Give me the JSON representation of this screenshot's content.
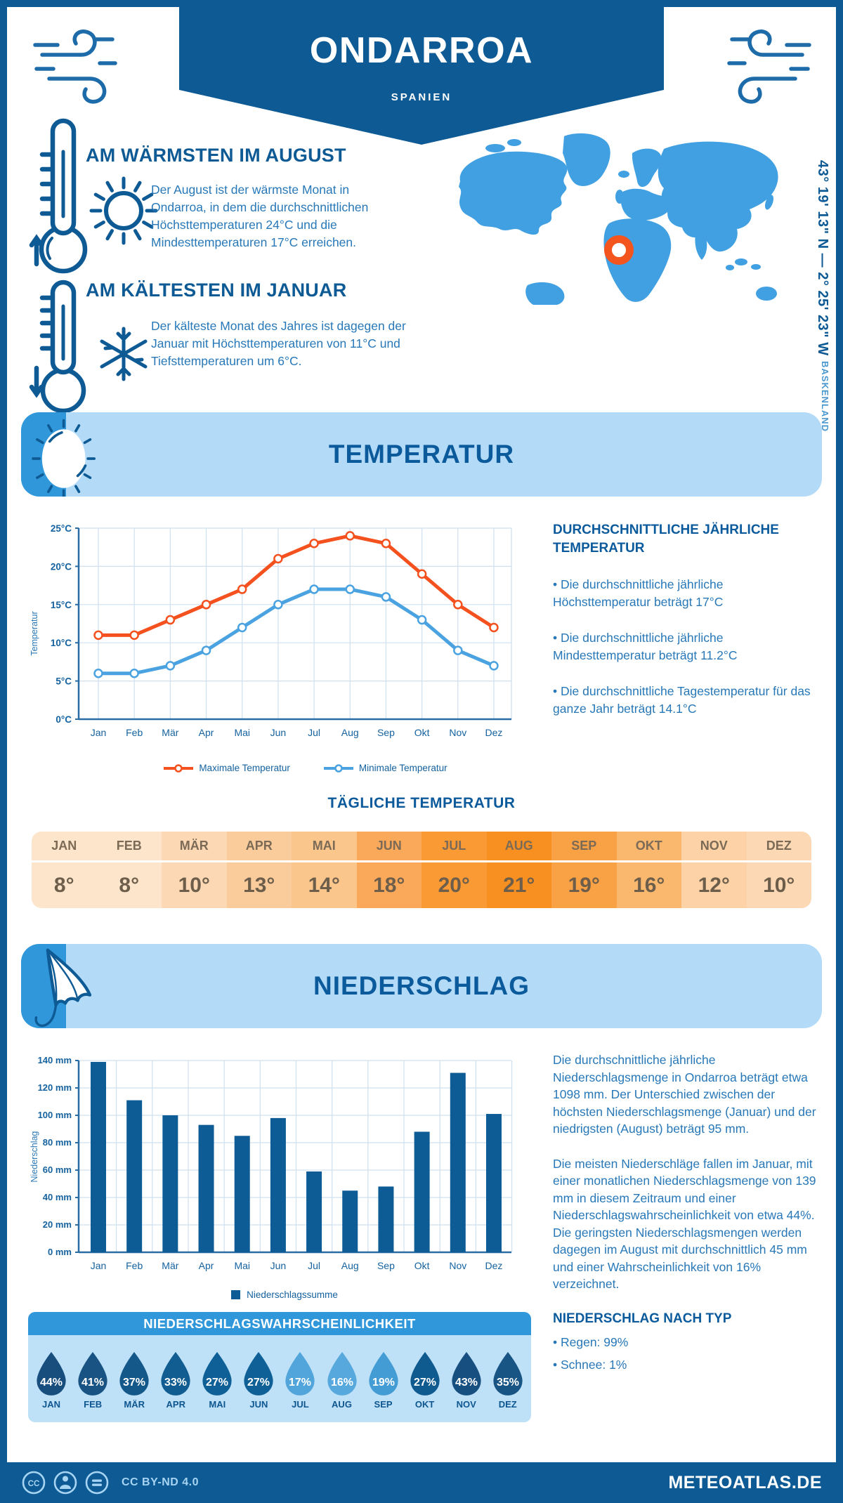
{
  "header": {
    "title": "ONDARROA",
    "subtitle": "SPANIEN"
  },
  "intro": {
    "warmest": {
      "title": "AM WÄRMSTEN IM AUGUST",
      "text": "Der August ist der wärmste Monat in Ondarroa, in dem die durchschnittlichen Höchsttemperaturen 24°C und die Mindesttemperaturen 17°C erreichen."
    },
    "coldest": {
      "title": "AM KÄLTESTEN IM JANUAR",
      "text": "Der kälteste Monat des Jahres ist dagegen der Januar mit Höchsttemperaturen von 11°C und Tiefsttemperaturen um 6°C."
    }
  },
  "map": {
    "coordinates": "43° 19' 13\" N — 2° 25' 23\" W",
    "region": "BASKENLAND"
  },
  "sections": {
    "temperature": {
      "title": "TEMPERATUR"
    },
    "precipitation": {
      "title": "NIEDERSCHLAG"
    }
  },
  "chart_data": [
    {
      "type": "line",
      "categories": [
        "Jan",
        "Feb",
        "Mär",
        "Apr",
        "Mai",
        "Jun",
        "Jul",
        "Aug",
        "Sep",
        "Okt",
        "Nov",
        "Dez"
      ],
      "series": [
        {
          "name": "Maximale Temperatur",
          "color": "#f4511e",
          "values": [
            11,
            11,
            13,
            15,
            17,
            21,
            23,
            24,
            23,
            19,
            15,
            12
          ]
        },
        {
          "name": "Minimale Temperatur",
          "color": "#4aa3e0",
          "values": [
            6,
            6,
            7,
            9,
            12,
            15,
            17,
            17,
            16,
            13,
            9,
            7
          ]
        }
      ],
      "ylabel": "Temperatur",
      "ylim": [
        0,
        25
      ],
      "ytick_step": 5,
      "ytick_suffix": "°C",
      "grid": true,
      "legend_position": "bottom"
    },
    {
      "type": "bar",
      "categories": [
        "Jan",
        "Feb",
        "Mär",
        "Apr",
        "Mai",
        "Jun",
        "Jul",
        "Aug",
        "Sep",
        "Okt",
        "Nov",
        "Dez"
      ],
      "values": [
        139,
        111,
        100,
        93,
        85,
        98,
        59,
        45,
        48,
        88,
        131,
        101
      ],
      "series_name": "Niederschlagssumme",
      "color": "#0d5c95",
      "ylabel": "Niederschlag",
      "ylim": [
        0,
        140
      ],
      "ytick_step": 20,
      "ytick_suffix": " mm",
      "grid": true,
      "legend_position": "bottom"
    }
  ],
  "annual": {
    "title": "DURCHSCHNITTLICHE JÄHRLICHE TEMPERATUR",
    "bullets": [
      "• Die durchschnittliche jährliche Höchsttemperatur beträgt 17°C",
      "• Die durchschnittliche jährliche Mindesttemperatur beträgt 11.2°C",
      "• Die durchschnittliche Tagestemperatur für das ganze Jahr beträgt 14.1°C"
    ]
  },
  "daily": {
    "title": "TÄGLICHE TEMPERATUR",
    "months": [
      "JAN",
      "FEB",
      "MÄR",
      "APR",
      "MAI",
      "JUN",
      "JUL",
      "AUG",
      "SEP",
      "OKT",
      "NOV",
      "DEZ"
    ],
    "values": [
      "8°",
      "8°",
      "10°",
      "13°",
      "14°",
      "18°",
      "20°",
      "21°",
      "19°",
      "16°",
      "12°",
      "10°"
    ],
    "colors": [
      "#fde5cb",
      "#fde5cb",
      "#fcd9b4",
      "#fbcc9b",
      "#fbc68c",
      "#faa85a",
      "#f99a35",
      "#f89021",
      "#f9a145",
      "#fab76e",
      "#fcd2a6",
      "#fcd9b4"
    ],
    "month_color": "#7a6a56",
    "value_color": "#6d5e4b"
  },
  "precipitation": {
    "paragraphs": [
      "Die durchschnittliche jährliche Niederschlagsmenge in Ondarroa beträgt etwa 1098 mm. Der Unterschied zwischen der höchsten Niederschlagsmenge (Januar) und der niedrigsten (August) beträgt 95 mm.",
      "Die meisten Niederschläge fallen im Januar, mit einer monatlichen Niederschlagsmenge von 139 mm in diesem Zeitraum und einer Niederschlagswahrscheinlichkeit von etwa 44%. Die geringsten Niederschlagsmengen werden dagegen im August mit durchschnittlich 45 mm und einer Wahrscheinlichkeit von 16% verzeichnet."
    ],
    "type_title": "NIEDERSCHLAG NACH TYP",
    "type_bullets": [
      "• Regen: 99%",
      "• Schnee: 1%"
    ]
  },
  "probability": {
    "title": "NIEDERSCHLAGSWAHRSCHEINLICHKEIT",
    "months": [
      "JAN",
      "FEB",
      "MÄR",
      "APR",
      "MAI",
      "JUN",
      "JUL",
      "AUG",
      "SEP",
      "OKT",
      "NOV",
      "DEZ"
    ],
    "values": [
      "44%",
      "41%",
      "37%",
      "33%",
      "27%",
      "27%",
      "17%",
      "16%",
      "19%",
      "27%",
      "43%",
      "35%"
    ],
    "colors": [
      "#174e7e",
      "#185383",
      "#14588a",
      "#115c90",
      "#0e6096",
      "#0e6096",
      "#52a5da",
      "#57a8dc",
      "#449cd5",
      "#0f5a8e",
      "#174f80",
      "#185585"
    ]
  },
  "footer": {
    "license": "CC BY-ND 4.0",
    "site": "METEOATLAS.DE"
  },
  "colors": {
    "primary": "#0e5a94",
    "accent": "#2f97da",
    "banner_bg": "#b3dbf8",
    "panel_bg": "#bee1f8",
    "body_text": "#2878b8",
    "map_land": "#41a0e2",
    "marker": "#f4541d",
    "max_line": "#f4511e",
    "min_line": "#4aa3e0",
    "bar": "#0d5c95",
    "grid": "#cfe0ef",
    "axis": "#2a6da5",
    "tick_text": "#15629f"
  }
}
